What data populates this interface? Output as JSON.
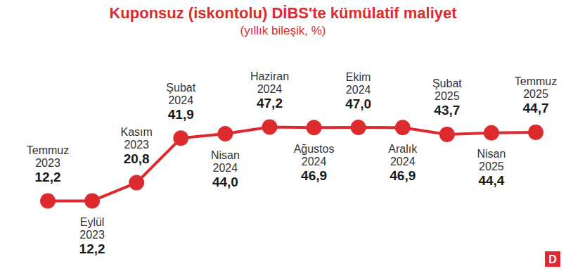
{
  "chart_data": {
    "type": "line",
    "title": "Kuponsuz (iskontolu) DİBS'te kümülatif maliyet",
    "subtitle": "(yıllık bileşik, %)",
    "categories": [
      "Temmuz 2023",
      "Eylül 2023",
      "Kasım 2023",
      "Şubat 2024",
      "Nisan 2024",
      "Haziran 2024",
      "Ağustos 2024",
      "Ekim 2024",
      "Aralık 2024",
      "Şubat 2025",
      "Nisan 2025",
      "Temmuz 2025"
    ],
    "values": [
      12.2,
      12.2,
      20.8,
      41.9,
      44.0,
      47.2,
      46.9,
      47.0,
      46.9,
      43.7,
      44.4,
      44.7
    ],
    "value_labels": [
      "12,2",
      "12,2",
      "20,8",
      "41,9",
      "44,0",
      "47,2",
      "46,9",
      "47,0",
      "46,9",
      "43,7",
      "44,4",
      "44,7"
    ],
    "color": "#dd2a2f",
    "marker": "circle",
    "ylim": [
      0,
      90
    ],
    "yticks": [
      0,
      90
    ],
    "grid": false,
    "data_labels": true,
    "tick_labels": false,
    "annotation": "D"
  }
}
